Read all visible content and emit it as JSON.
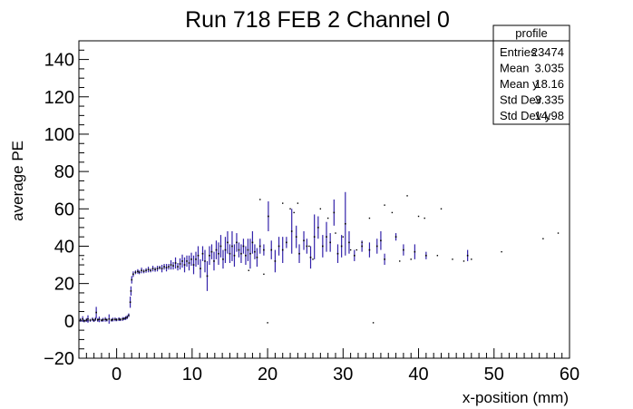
{
  "chart_data": {
    "type": "scatter",
    "title": "Run 718 FEB 2 Channel 0",
    "xlabel": "x-position (mm)",
    "ylabel": "average PE",
    "xlim": [
      -5,
      60
    ],
    "ylim": [
      -20,
      150
    ],
    "x_ticks": [
      0,
      10,
      20,
      30,
      40,
      50,
      60
    ],
    "x_tick_labels": [
      "0",
      "10",
      "20",
      "30",
      "40",
      "50",
      "60"
    ],
    "y_ticks": [
      -20,
      0,
      20,
      40,
      60,
      80,
      100,
      120,
      140
    ],
    "y_tick_labels": [
      "−20",
      "0",
      "20",
      "40",
      "60",
      "80",
      "100",
      "120",
      "140"
    ],
    "grid": false,
    "marker_color": "#3322aa",
    "stats_box": {
      "title": "profile",
      "rows": [
        {
          "label": "Entries",
          "value": "23474"
        },
        {
          "label": "Mean",
          "value": "3.035"
        },
        {
          "label": "Mean y",
          "value": "18.16"
        },
        {
          "label": "Std Dev",
          "value": "3.335"
        },
        {
          "label": "Std Dev y",
          "value": "14.98"
        }
      ]
    },
    "points": [
      {
        "x": -4.8,
        "y": 0.5,
        "e": 1.0
      },
      {
        "x": -4.5,
        "y": 1.0,
        "e": 1.5
      },
      {
        "x": -4.3,
        "y": 0.0,
        "e": 0.8
      },
      {
        "x": -4.0,
        "y": 0.5,
        "e": 1.0
      },
      {
        "x": -3.8,
        "y": 1.0,
        "e": 2.0
      },
      {
        "x": -3.5,
        "y": 0.3,
        "e": 0.8
      },
      {
        "x": -3.2,
        "y": 0.8,
        "e": 1.0
      },
      {
        "x": -3.0,
        "y": 0.2,
        "e": 0.8
      },
      {
        "x": -2.8,
        "y": 1.0,
        "e": 1.0
      },
      {
        "x": -2.7,
        "y": 4.5,
        "e": 3.0
      },
      {
        "x": -2.5,
        "y": 0.5,
        "e": 1.0
      },
      {
        "x": -2.3,
        "y": 0.8,
        "e": 1.5
      },
      {
        "x": -2.0,
        "y": 0.3,
        "e": 0.8
      },
      {
        "x": -1.8,
        "y": 0.6,
        "e": 1.0
      },
      {
        "x": -1.5,
        "y": 0.8,
        "e": 1.2
      },
      {
        "x": -1.3,
        "y": 0.5,
        "e": 0.8
      },
      {
        "x": -1.0,
        "y": 1.0,
        "e": 2.5
      },
      {
        "x": -0.7,
        "y": 0.4,
        "e": 0.8
      },
      {
        "x": -0.5,
        "y": 0.7,
        "e": 1.0
      },
      {
        "x": -0.2,
        "y": 0.8,
        "e": 1.0
      },
      {
        "x": 0.0,
        "y": 0.6,
        "e": 0.8
      },
      {
        "x": 0.3,
        "y": 0.9,
        "e": 1.0
      },
      {
        "x": 0.5,
        "y": 0.7,
        "e": 0.8
      },
      {
        "x": 0.8,
        "y": 1.0,
        "e": 1.0
      },
      {
        "x": 1.0,
        "y": 1.2,
        "e": 0.8
      },
      {
        "x": 1.2,
        "y": 1.5,
        "e": 1.0
      },
      {
        "x": 1.4,
        "y": 2.0,
        "e": 1.0
      },
      {
        "x": 1.6,
        "y": 3.0,
        "e": 1.0
      },
      {
        "x": 1.8,
        "y": 10.0,
        "e": 3.0
      },
      {
        "x": 1.9,
        "y": 16.0,
        "e": 2.5
      },
      {
        "x": 2.0,
        "y": 22.0,
        "e": 2.0
      },
      {
        "x": 2.2,
        "y": 25.0,
        "e": 1.5
      },
      {
        "x": 2.5,
        "y": 26.0,
        "e": 1.0
      },
      {
        "x": 2.8,
        "y": 26.5,
        "e": 1.2
      },
      {
        "x": 3.0,
        "y": 26.0,
        "e": 1.0
      },
      {
        "x": 3.3,
        "y": 27.0,
        "e": 1.5
      },
      {
        "x": 3.6,
        "y": 26.5,
        "e": 1.0
      },
      {
        "x": 3.9,
        "y": 27.0,
        "e": 1.2
      },
      {
        "x": 4.2,
        "y": 27.5,
        "e": 1.5
      },
      {
        "x": 4.5,
        "y": 27.0,
        "e": 1.0
      },
      {
        "x": 4.8,
        "y": 28.0,
        "e": 1.5
      },
      {
        "x": 5.1,
        "y": 27.5,
        "e": 1.2
      },
      {
        "x": 5.4,
        "y": 28.0,
        "e": 1.5
      },
      {
        "x": 5.7,
        "y": 28.5,
        "e": 1.0
      },
      {
        "x": 6.0,
        "y": 28.0,
        "e": 2.0
      },
      {
        "x": 6.3,
        "y": 29.0,
        "e": 1.5
      },
      {
        "x": 6.6,
        "y": 28.5,
        "e": 2.0
      },
      {
        "x": 6.9,
        "y": 29.0,
        "e": 1.5
      },
      {
        "x": 7.2,
        "y": 30.0,
        "e": 2.5
      },
      {
        "x": 7.5,
        "y": 29.5,
        "e": 2.0
      },
      {
        "x": 7.8,
        "y": 31.0,
        "e": 3.0
      },
      {
        "x": 8.1,
        "y": 29.0,
        "e": 2.0
      },
      {
        "x": 8.4,
        "y": 30.5,
        "e": 3.0
      },
      {
        "x": 8.7,
        "y": 32.0,
        "e": 3.5
      },
      {
        "x": 9.0,
        "y": 30.0,
        "e": 4.0
      },
      {
        "x": 9.3,
        "y": 32.0,
        "e": 3.0
      },
      {
        "x": 9.6,
        "y": 31.0,
        "e": 4.0
      },
      {
        "x": 9.9,
        "y": 33.0,
        "e": 3.5
      },
      {
        "x": 10.2,
        "y": 30.0,
        "e": 5.0
      },
      {
        "x": 10.5,
        "y": 33.0,
        "e": 4.0
      },
      {
        "x": 10.8,
        "y": 35.0,
        "e": 5.0
      },
      {
        "x": 11.1,
        "y": 28.0,
        "e": 5.0
      },
      {
        "x": 11.4,
        "y": 36.0,
        "e": 4.0
      },
      {
        "x": 11.7,
        "y": 32.0,
        "e": 6.0
      },
      {
        "x": 12.0,
        "y": 24.0,
        "e": 8.0
      },
      {
        "x": 12.3,
        "y": 35.0,
        "e": 5.0
      },
      {
        "x": 12.6,
        "y": 37.0,
        "e": 4.0
      },
      {
        "x": 12.9,
        "y": 32.0,
        "e": 5.0
      },
      {
        "x": 13.2,
        "y": 38.0,
        "e": 5.0
      },
      {
        "x": 13.5,
        "y": 36.0,
        "e": 6.0
      },
      {
        "x": 13.8,
        "y": 40.0,
        "e": 6.0
      },
      {
        "x": 14.1,
        "y": 33.0,
        "e": 5.0
      },
      {
        "x": 14.4,
        "y": 38.0,
        "e": 7.0
      },
      {
        "x": 14.7,
        "y": 42.0,
        "e": 6.0
      },
      {
        "x": 15.0,
        "y": 36.0,
        "e": 5.0
      },
      {
        "x": 15.3,
        "y": 40.0,
        "e": 8.0
      },
      {
        "x": 15.6,
        "y": 35.0,
        "e": 6.0
      },
      {
        "x": 15.9,
        "y": 42.0,
        "e": 5.0
      },
      {
        "x": 16.2,
        "y": 38.0,
        "e": 4.0
      },
      {
        "x": 16.5,
        "y": 36.0,
        "e": 5.0
      },
      {
        "x": 16.8,
        "y": 40.0,
        "e": 4.0
      },
      {
        "x": 17.1,
        "y": 35.0,
        "e": 5.0
      },
      {
        "x": 17.4,
        "y": 38.0,
        "e": 6.0
      },
      {
        "x": 17.7,
        "y": 36.0,
        "e": 8.0
      },
      {
        "x": 18.0,
        "y": 42.0,
        "e": 6.0
      },
      {
        "x": 18.3,
        "y": 37.0,
        "e": 4.0
      },
      {
        "x": 18.6,
        "y": 34.0,
        "e": 5.0
      },
      {
        "x": 19.0,
        "y": 40.0,
        "e": 4.0
      },
      {
        "x": 19.5,
        "y": 38.0,
        "e": 3.0
      },
      {
        "x": 20.1,
        "y": 56.0,
        "e": 8.0
      },
      {
        "x": 20.5,
        "y": 38.0,
        "e": 5.0
      },
      {
        "x": 21.0,
        "y": 32.0,
        "e": 6.0
      },
      {
        "x": 21.5,
        "y": 40.0,
        "e": 5.0
      },
      {
        "x": 22.0,
        "y": 38.0,
        "e": 7.0
      },
      {
        "x": 22.5,
        "y": 42.0,
        "e": 3.0
      },
      {
        "x": 23.2,
        "y": 48.0,
        "e": 12.0
      },
      {
        "x": 23.8,
        "y": 45.0,
        "e": 6.0
      },
      {
        "x": 24.2,
        "y": 36.0,
        "e": 5.0
      },
      {
        "x": 24.8,
        "y": 43.0,
        "e": 5.0
      },
      {
        "x": 25.2,
        "y": 40.0,
        "e": 4.0
      },
      {
        "x": 25.7,
        "y": 34.0,
        "e": 6.0
      },
      {
        "x": 26.2,
        "y": 45.0,
        "e": 12.0
      },
      {
        "x": 26.7,
        "y": 50.0,
        "e": 6.0
      },
      {
        "x": 27.3,
        "y": 40.0,
        "e": 6.0
      },
      {
        "x": 27.8,
        "y": 45.0,
        "e": 8.0
      },
      {
        "x": 28.3,
        "y": 42.0,
        "e": 5.0
      },
      {
        "x": 28.8,
        "y": 58.0,
        "e": 7.0
      },
      {
        "x": 29.3,
        "y": 36.0,
        "e": 5.0
      },
      {
        "x": 29.8,
        "y": 40.0,
        "e": 6.0
      },
      {
        "x": 30.3,
        "y": 52.0,
        "e": 17.0
      },
      {
        "x": 30.8,
        "y": 42.0,
        "e": 6.0
      },
      {
        "x": 31.5,
        "y": 35.0,
        "e": 3.0
      },
      {
        "x": 32.5,
        "y": 40.0,
        "e": 3.0
      },
      {
        "x": 33.5,
        "y": 38.0,
        "e": 4.0
      },
      {
        "x": 34.5,
        "y": 40.0,
        "e": 4.0
      },
      {
        "x": 35.0,
        "y": 43.0,
        "e": 5.0
      },
      {
        "x": 35.5,
        "y": 33.0,
        "e": 3.0
      },
      {
        "x": 37.0,
        "y": 45.0,
        "e": 2.0
      },
      {
        "x": 38.0,
        "y": 38.0,
        "e": 3.0
      },
      {
        "x": 39.5,
        "y": 37.0,
        "e": 4.0
      },
      {
        "x": 41.0,
        "y": 35.0,
        "e": 2.0
      },
      {
        "x": 46.5,
        "y": 35.0,
        "e": 3.0
      }
    ],
    "outliers": [
      {
        "x": -4.5,
        "y": 33.0
      },
      {
        "x": 17.5,
        "y": 27.0
      },
      {
        "x": 19.0,
        "y": 65.0
      },
      {
        "x": 19.5,
        "y": 25.0
      },
      {
        "x": 20.0,
        "y": -1.0
      },
      {
        "x": 22.0,
        "y": 63.0
      },
      {
        "x": 23.0,
        "y": 60.0
      },
      {
        "x": 23.5,
        "y": 58.0
      },
      {
        "x": 24.0,
        "y": 63.0
      },
      {
        "x": 25.5,
        "y": 40.0
      },
      {
        "x": 26.0,
        "y": 33.0
      },
      {
        "x": 27.0,
        "y": 60.0
      },
      {
        "x": 28.0,
        "y": 55.0
      },
      {
        "x": 29.0,
        "y": 47.0
      },
      {
        "x": 30.0,
        "y": 45.0
      },
      {
        "x": 31.0,
        "y": 38.0
      },
      {
        "x": 31.8,
        "y": 38.0
      },
      {
        "x": 32.5,
        "y": 42.0
      },
      {
        "x": 33.5,
        "y": 55.0
      },
      {
        "x": 34.0,
        "y": -1.0
      },
      {
        "x": 35.5,
        "y": 62.0
      },
      {
        "x": 36.5,
        "y": 58.0
      },
      {
        "x": 37.5,
        "y": 32.0
      },
      {
        "x": 38.5,
        "y": 67.0
      },
      {
        "x": 39.0,
        "y": 33.0
      },
      {
        "x": 40.0,
        "y": 56.0
      },
      {
        "x": 40.8,
        "y": 55.0
      },
      {
        "x": 42.5,
        "y": 35.0
      },
      {
        "x": 43.0,
        "y": 60.0
      },
      {
        "x": 44.5,
        "y": 33.0
      },
      {
        "x": 46.0,
        "y": 32.0
      },
      {
        "x": 47.0,
        "y": 33.0
      },
      {
        "x": 51.0,
        "y": 37.0
      },
      {
        "x": 56.5,
        "y": 44.0
      },
      {
        "x": 58.5,
        "y": 47.0
      }
    ]
  }
}
